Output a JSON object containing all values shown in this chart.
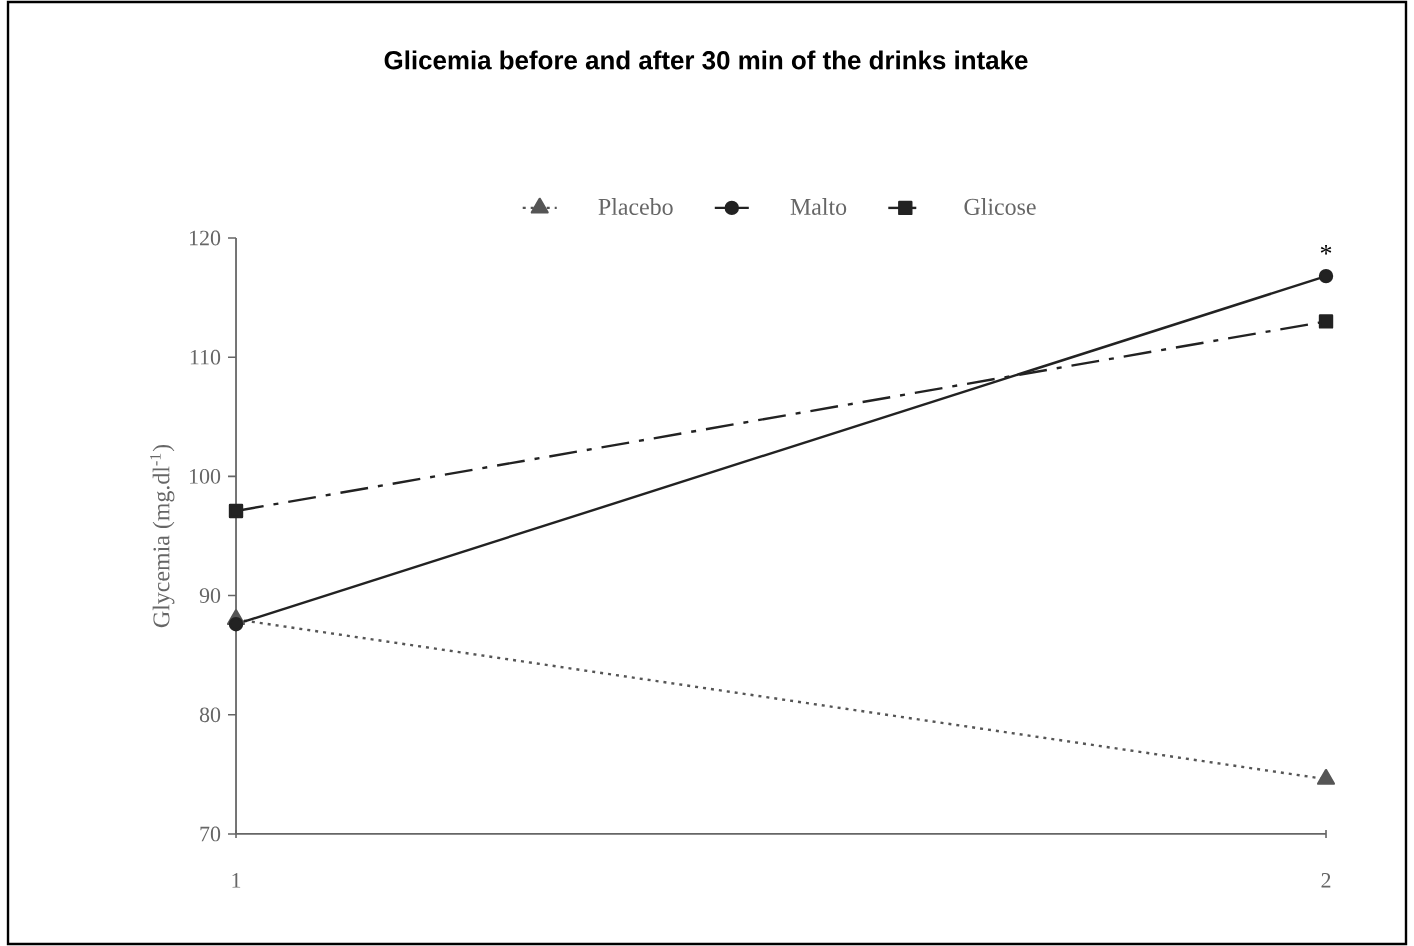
{
  "chart_data": {
    "type": "line",
    "title": "Glicemia before and after 30 min of the drinks intake",
    "ylabel": "Glycemia (mg.dl$^{-1}$)",
    "x": [
      1,
      2
    ],
    "xlim": [
      1,
      2
    ],
    "xticks": [
      1,
      2
    ],
    "ylim": [
      70,
      120
    ],
    "yticks": [
      70,
      80,
      90,
      100,
      110,
      120
    ],
    "series": [
      {
        "name": "Placebo",
        "color": "#555555",
        "values": [
          88,
          74.6
        ],
        "marker": "triangle",
        "line_style": "dotted"
      },
      {
        "name": "Malto",
        "color": "#222222",
        "values": [
          87.6,
          116.8
        ],
        "marker": "circle",
        "line_style": "solid"
      },
      {
        "name": "Glicose",
        "color": "#222222",
        "values": [
          97.1,
          113
        ],
        "marker": "square",
        "line_style": "dashed"
      }
    ],
    "annotations": [
      "*"
    ],
    "legend": "top",
    "grid": false
  }
}
